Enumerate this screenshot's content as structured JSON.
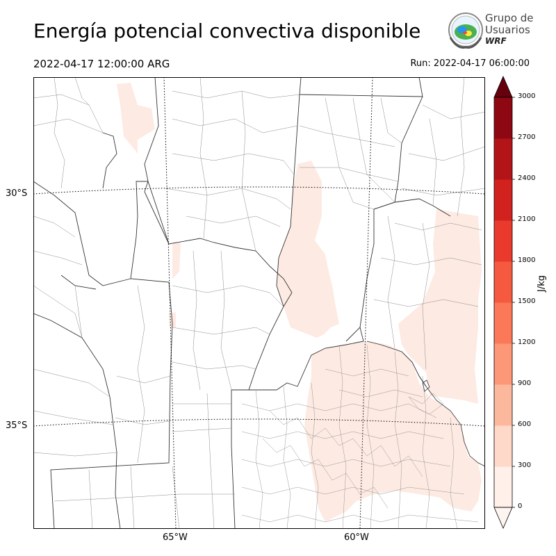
{
  "header": {
    "title": "Energía potencial convectiva disponible",
    "valid_time": "2022-04-17 12:00:00 ARG",
    "run_time": "Run: 2022-04-17 06:00:00"
  },
  "logo": {
    "line1": "Grupo de",
    "line2": "Usuarios",
    "line3": "WRF"
  },
  "map": {
    "lat_labels": [
      "30°S",
      "35°S"
    ],
    "lon_labels": [
      "65°W",
      "60°W"
    ]
  },
  "colorbar": {
    "unit": "J/kg",
    "levels": [
      "0",
      "300",
      "600",
      "900",
      "1200",
      "1500",
      "1800",
      "2100",
      "2400",
      "2700",
      "3000"
    ],
    "colors": [
      "#fff0e9",
      "#fed8c8",
      "#fcb89c",
      "#fc9777",
      "#fb7858",
      "#f55a40",
      "#ea3a2e",
      "#d2221f",
      "#b21418",
      "#8e0813"
    ],
    "extend_top_color": "#67000d",
    "extend_bottom_color": "#fff5f0"
  }
}
